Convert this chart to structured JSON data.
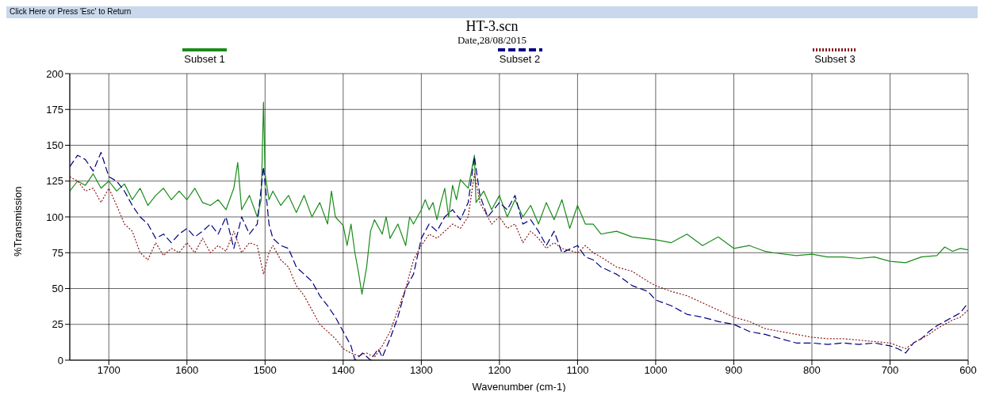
{
  "chart_data": {
    "type": "line",
    "title": "HT-3.scn",
    "subtitle": "Date,28/08/2015",
    "xlabel": "Wavenumber (cm-1)",
    "ylabel": "%Transmission",
    "annotations": [
      "Click Here or Press 'Esc' to Return"
    ],
    "xlim": [
      1750,
      600
    ],
    "xticks": [
      1700,
      1600,
      1500,
      1400,
      1300,
      1200,
      1100,
      1000,
      900,
      800,
      700,
      600
    ],
    "ylim": [
      0,
      200
    ],
    "yticks": [
      0,
      25,
      50,
      75,
      100,
      125,
      150,
      175,
      200
    ],
    "grid": true,
    "legend": "top",
    "series": [
      {
        "name": "Subset 1",
        "color": "#1a8c1a",
        "line_style": "solid",
        "x": [
          1750,
          1740,
          1730,
          1720,
          1710,
          1700,
          1690,
          1680,
          1670,
          1660,
          1650,
          1640,
          1630,
          1620,
          1610,
          1600,
          1590,
          1580,
          1570,
          1560,
          1550,
          1540,
          1535,
          1530,
          1520,
          1510,
          1505,
          1502,
          1500,
          1495,
          1490,
          1480,
          1470,
          1460,
          1450,
          1440,
          1430,
          1420,
          1415,
          1410,
          1400,
          1395,
          1390,
          1385,
          1380,
          1376,
          1370,
          1365,
          1360,
          1350,
          1345,
          1340,
          1330,
          1320,
          1315,
          1310,
          1300,
          1295,
          1290,
          1285,
          1280,
          1275,
          1270,
          1265,
          1260,
          1255,
          1250,
          1240,
          1232,
          1230,
          1220,
          1210,
          1200,
          1190,
          1180,
          1170,
          1160,
          1150,
          1140,
          1130,
          1120,
          1110,
          1100,
          1090,
          1080,
          1070,
          1050,
          1030,
          1000,
          980,
          960,
          940,
          920,
          900,
          880,
          860,
          850,
          820,
          800,
          780,
          760,
          740,
          720,
          700,
          680,
          660,
          640,
          630,
          620,
          610,
          600
        ],
        "values": [
          118,
          125,
          122,
          130,
          120,
          125,
          118,
          123,
          112,
          120,
          108,
          115,
          120,
          112,
          118,
          112,
          120,
          110,
          108,
          112,
          105,
          120,
          138,
          105,
          115,
          100,
          112,
          180,
          130,
          112,
          118,
          108,
          115,
          103,
          115,
          100,
          110,
          95,
          118,
          100,
          94,
          80,
          95,
          75,
          60,
          46,
          65,
          90,
          98,
          88,
          100,
          85,
          95,
          80,
          100,
          95,
          105,
          112,
          105,
          110,
          98,
          110,
          120,
          100,
          122,
          112,
          126,
          120,
          143,
          110,
          118,
          105,
          115,
          100,
          112,
          100,
          108,
          95,
          110,
          98,
          112,
          92,
          108,
          95,
          95,
          88,
          90,
          86,
          84,
          82,
          88,
          80,
          86,
          78,
          80,
          76,
          75,
          73,
          74,
          72,
          72,
          71,
          72,
          69,
          68,
          72,
          73,
          79,
          76,
          78,
          77
        ]
      },
      {
        "name": "Subset 2",
        "color": "#000080",
        "line_style": "dashed",
        "x": [
          1750,
          1740,
          1730,
          1720,
          1710,
          1700,
          1690,
          1680,
          1670,
          1660,
          1650,
          1640,
          1630,
          1620,
          1610,
          1600,
          1590,
          1580,
          1570,
          1560,
          1550,
          1540,
          1530,
          1520,
          1510,
          1502,
          1495,
          1490,
          1480,
          1470,
          1460,
          1450,
          1440,
          1430,
          1420,
          1410,
          1400,
          1390,
          1385,
          1375,
          1365,
          1355,
          1350,
          1340,
          1330,
          1320,
          1310,
          1300,
          1290,
          1280,
          1270,
          1260,
          1250,
          1240,
          1232,
          1225,
          1215,
          1200,
          1190,
          1180,
          1170,
          1160,
          1150,
          1140,
          1130,
          1120,
          1100,
          1090,
          1080,
          1070,
          1050,
          1030,
          1010,
          1000,
          980,
          960,
          940,
          920,
          900,
          880,
          860,
          840,
          820,
          800,
          780,
          760,
          740,
          720,
          700,
          690,
          680,
          670,
          660,
          650,
          640,
          630,
          620,
          610,
          600
        ],
        "values": [
          135,
          143,
          140,
          132,
          145,
          128,
          125,
          118,
          108,
          100,
          95,
          85,
          88,
          82,
          88,
          92,
          86,
          90,
          95,
          88,
          100,
          78,
          100,
          88,
          95,
          135,
          95,
          85,
          80,
          78,
          65,
          60,
          55,
          45,
          38,
          30,
          20,
          10,
          0,
          5,
          0,
          8,
          2,
          15,
          30,
          50,
          60,
          85,
          95,
          90,
          100,
          105,
          98,
          110,
          142,
          115,
          100,
          110,
          105,
          115,
          95,
          98,
          90,
          80,
          90,
          75,
          80,
          72,
          70,
          65,
          60,
          52,
          48,
          42,
          38,
          32,
          30,
          27,
          25,
          20,
          18,
          15,
          12,
          12,
          11,
          12,
          11,
          12,
          10,
          8,
          5,
          12,
          15,
          20,
          24,
          27,
          30,
          33,
          40
        ]
      },
      {
        "name": "Subset 3",
        "color": "#8b1a1a",
        "line_style": "dotted",
        "x": [
          1750,
          1740,
          1730,
          1720,
          1710,
          1700,
          1690,
          1680,
          1670,
          1660,
          1650,
          1640,
          1630,
          1620,
          1610,
          1600,
          1590,
          1580,
          1570,
          1560,
          1550,
          1540,
          1530,
          1520,
          1510,
          1502,
          1495,
          1490,
          1480,
          1470,
          1460,
          1450,
          1440,
          1430,
          1420,
          1410,
          1400,
          1390,
          1380,
          1370,
          1360,
          1350,
          1340,
          1330,
          1320,
          1310,
          1300,
          1290,
          1280,
          1270,
          1260,
          1250,
          1240,
          1232,
          1225,
          1210,
          1200,
          1190,
          1180,
          1170,
          1160,
          1150,
          1140,
          1130,
          1120,
          1100,
          1090,
          1080,
          1070,
          1050,
          1030,
          1010,
          1000,
          980,
          960,
          940,
          920,
          900,
          880,
          860,
          840,
          820,
          800,
          780,
          760,
          740,
          720,
          700,
          690,
          680,
          670,
          660,
          650,
          640,
          630,
          620,
          610,
          600
        ],
        "values": [
          128,
          125,
          118,
          120,
          110,
          120,
          108,
          95,
          90,
          75,
          70,
          82,
          73,
          78,
          75,
          82,
          75,
          85,
          75,
          80,
          76,
          90,
          75,
          82,
          80,
          60,
          75,
          80,
          70,
          65,
          52,
          45,
          35,
          25,
          20,
          15,
          8,
          5,
          3,
          5,
          2,
          10,
          20,
          35,
          50,
          70,
          80,
          88,
          85,
          90,
          95,
          92,
          100,
          130,
          110,
          95,
          100,
          92,
          95,
          82,
          90,
          85,
          78,
          82,
          78,
          75,
          80,
          75,
          72,
          65,
          62,
          55,
          52,
          48,
          45,
          40,
          35,
          30,
          27,
          22,
          20,
          18,
          16,
          15,
          15,
          14,
          13,
          12,
          10,
          8,
          12,
          15,
          18,
          22,
          25,
          28,
          30,
          35
        ]
      }
    ]
  }
}
